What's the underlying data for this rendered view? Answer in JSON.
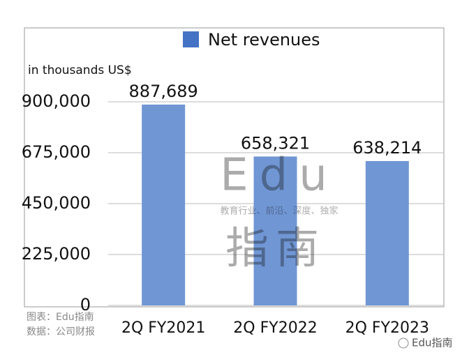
{
  "chart_data": {
    "type": "bar",
    "y_axis_label": "in thousands US$",
    "categories": [
      "2Q FY2021",
      "2Q FY2022",
      "2Q FY2023"
    ],
    "series": [
      {
        "name": "Net revenues",
        "color": "#4472c4",
        "bar_color": "#7096d4",
        "values": [
          887689,
          658321,
          638214
        ],
        "value_labels": [
          "887,689",
          "658,321",
          "638,214"
        ]
      }
    ],
    "ylim": [
      0,
      900000
    ],
    "yticks": [
      0,
      {
        "value": 225000,
        "label": "225,000"
      },
      {
        "value": 450000,
        "label": "450,000"
      },
      {
        "value": 675000,
        "label": "675,000"
      },
      {
        "value": 900000,
        "label": "900,000"
      }
    ],
    "grid": true,
    "legend": "top"
  },
  "watermark": {
    "title": "Edu",
    "subtitle": "教育行业、前沿、深度、独家",
    "name": "指南"
  },
  "source": {
    "chart": "图表：Edu指南",
    "data": "数据：公司财报"
  },
  "brand": "Edu指南"
}
